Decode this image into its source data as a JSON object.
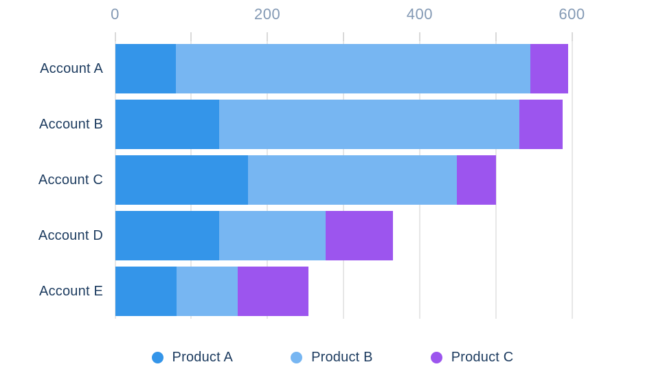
{
  "chart_data": {
    "type": "bar",
    "orientation": "horizontal",
    "stacked": true,
    "title": "",
    "xlabel": "",
    "ylabel": "",
    "categories": [
      "Account A",
      "Account B",
      "Account C",
      "Account D",
      "Account E"
    ],
    "series": [
      {
        "name": "Product A",
        "color": "#3495e9",
        "values": [
          80,
          137,
          175,
          137,
          81
        ]
      },
      {
        "name": "Product B",
        "color": "#77b6f2",
        "values": [
          465,
          394,
          274,
          140,
          80
        ]
      },
      {
        "name": "Product C",
        "color": "#9c55ee",
        "values": [
          50,
          57,
          51,
          88,
          93
        ]
      }
    ],
    "totals": [
      595,
      588,
      500,
      365,
      254
    ],
    "x_axis": {
      "position": "top",
      "min": 0,
      "max": 600,
      "tick_interval": 100,
      "labeled_ticks": [
        0,
        200,
        400,
        600
      ],
      "tick_labels": [
        "0",
        "200",
        "400",
        "600"
      ]
    },
    "grid": true,
    "legend_position": "bottom"
  },
  "colors": {
    "background": "#ffffff",
    "gridline": "#e7e7e7",
    "tick": "#d9d9d9",
    "axis_label": "#8399b4",
    "category_label": "#1b3a5e",
    "legend_label": "#1b3a5e"
  }
}
